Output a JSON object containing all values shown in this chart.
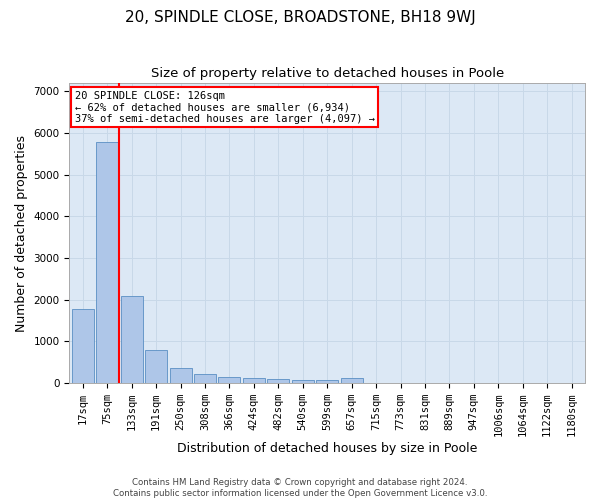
{
  "title": "20, SPINDLE CLOSE, BROADSTONE, BH18 9WJ",
  "subtitle": "Size of property relative to detached houses in Poole",
  "xlabel": "Distribution of detached houses by size in Poole",
  "ylabel": "Number of detached properties",
  "footer_line1": "Contains HM Land Registry data © Crown copyright and database right 2024.",
  "footer_line2": "Contains public sector information licensed under the Open Government Licence v3.0.",
  "bin_labels": [
    "17sqm",
    "75sqm",
    "133sqm",
    "191sqm",
    "250sqm",
    "308sqm",
    "366sqm",
    "424sqm",
    "482sqm",
    "540sqm",
    "599sqm",
    "657sqm",
    "715sqm",
    "773sqm",
    "831sqm",
    "889sqm",
    "947sqm",
    "1006sqm",
    "1064sqm",
    "1122sqm",
    "1180sqm"
  ],
  "bar_values": [
    1780,
    5780,
    2080,
    800,
    360,
    210,
    140,
    110,
    100,
    80,
    80,
    110,
    0,
    0,
    0,
    0,
    0,
    0,
    0,
    0,
    0
  ],
  "bar_color": "#aec6e8",
  "bar_edge_color": "#5a8fc4",
  "grid_color": "#c8d8e8",
  "vline_color": "red",
  "annotation_text": "20 SPINDLE CLOSE: 126sqm\n← 62% of detached houses are smaller (6,934)\n37% of semi-detached houses are larger (4,097) →",
  "ylim": [
    0,
    7200
  ],
  "yticks": [
    0,
    1000,
    2000,
    3000,
    4000,
    5000,
    6000,
    7000
  ],
  "plot_bg_color": "#dce8f5",
  "title_fontsize": 11,
  "subtitle_fontsize": 9.5,
  "axis_label_fontsize": 9,
  "tick_fontsize": 7.5
}
